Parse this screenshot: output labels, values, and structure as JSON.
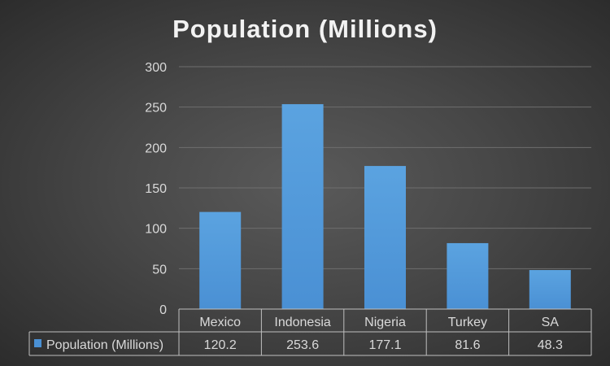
{
  "chart_data": {
    "type": "bar",
    "title": "Population (Millions)",
    "categories": [
      "Mexico",
      "Indonesia",
      "Nigeria",
      "Turkey",
      "SA"
    ],
    "series": [
      {
        "name": "Population (Millions)",
        "values": [
          120.2,
          253.6,
          177.1,
          81.6,
          48.3
        ],
        "labels": [
          "120.2",
          "253.6",
          "177.1",
          "81.6",
          "48.3"
        ]
      }
    ],
    "ylim": [
      0,
      300
    ],
    "yticks": [
      "0",
      "50",
      "100",
      "150",
      "200",
      "250",
      "300"
    ],
    "grid": true,
    "legend": "data-table",
    "colors": {
      "bar": "#4a90d4",
      "bar_light": "#5ba3e0"
    }
  }
}
